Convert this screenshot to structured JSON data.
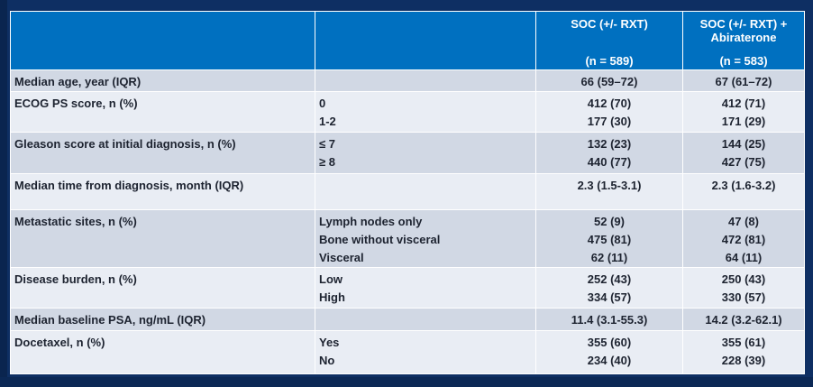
{
  "header": {
    "col_soc": {
      "line1": "SOC (+/- RXT)",
      "line2": "",
      "n": "(n = 589)"
    },
    "col_abi": {
      "line1": "SOC (+/- RXT) +",
      "line2": "Abiraterone",
      "n": "(n = 583)"
    }
  },
  "rows": {
    "median_age": {
      "label": "Median age, year (IQR)",
      "soc": "66 (59–72)",
      "abi": "67 (61–72)"
    },
    "ecog": {
      "label": "ECOG PS score, n (%)",
      "sub": [
        "0",
        "1-2"
      ],
      "soc": [
        "412 (70)",
        "177 (30)"
      ],
      "abi": [
        "412 (71)",
        "171 (29)"
      ]
    },
    "gleason": {
      "label": "Gleason score at initial diagnosis, n (%)",
      "sub": [
        "≤ 7",
        "≥ 8"
      ],
      "soc": [
        "132 (23)",
        "440 (77)"
      ],
      "abi": [
        "144 (25)",
        "427 (75)"
      ]
    },
    "time_dx": {
      "label": "Median time from diagnosis, month (IQR)",
      "soc": "2.3 (1.5-3.1)",
      "abi": "2.3 (1.6-3.2)"
    },
    "metastatic": {
      "label": "Metastatic sites, n (%)",
      "sub": [
        "Lymph nodes only",
        "Bone without visceral",
        "Visceral"
      ],
      "soc": [
        "52 (9)",
        "475 (81)",
        "62 (11)"
      ],
      "abi": [
        "47 (8)",
        "472 (81)",
        "64 (11)"
      ]
    },
    "burden": {
      "label": "Disease burden, n (%)",
      "sub": [
        "Low",
        "High"
      ],
      "soc": [
        "252 (43)",
        "334 (57)"
      ],
      "abi": [
        "250 (43)",
        "330 (57)"
      ]
    },
    "psa": {
      "label": "Median baseline PSA, ng/mL (IQR)",
      "soc": "11.4 (3.1-55.3)",
      "abi": "14.2 (3.2-62.1)"
    },
    "docetaxel": {
      "label": "Docetaxel, n (%)",
      "sub": [
        "Yes",
        "No"
      ],
      "soc": [
        "355 (60)",
        "234 (40)"
      ],
      "abi": [
        "355 (61)",
        "228 (39)"
      ]
    }
  },
  "colors": {
    "header_bg": "#0070c0",
    "row_dark": "#d1d8e4",
    "row_light": "#e9edf4",
    "slide_bg": "#0e2f63"
  }
}
